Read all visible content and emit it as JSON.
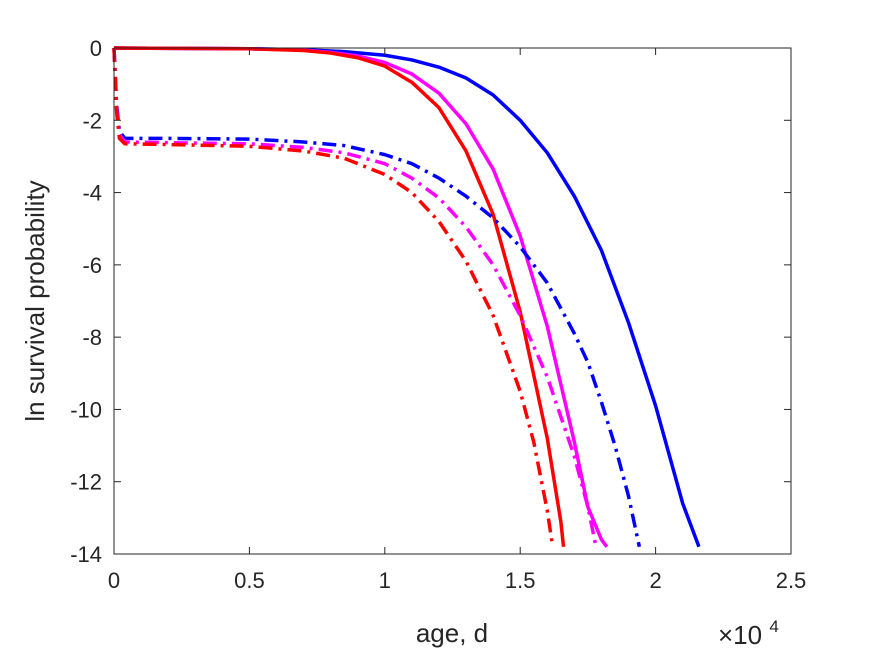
{
  "chart_data": {
    "type": "line",
    "title": "",
    "xlabel": "age, d",
    "ylabel": "ln survival probability",
    "x_multiplier_label": "×10",
    "x_multiplier_exponent": "4",
    "xlim": [
      0,
      25000
    ],
    "ylim": [
      -14,
      0
    ],
    "xticks": [
      0,
      5000,
      10000,
      15000,
      20000,
      25000
    ],
    "xtick_labels": [
      "0",
      "0.5",
      "1",
      "1.5",
      "2",
      "2.5"
    ],
    "yticks": [
      0,
      -2,
      -4,
      -6,
      -8,
      -10,
      -12,
      -14
    ],
    "ytick_labels": [
      "0",
      "-2",
      "-4",
      "-6",
      "-8",
      "-10",
      "-12",
      "-14"
    ],
    "grid": false,
    "legend": "none",
    "series": [
      {
        "color": "#0000ff",
        "style": "solid",
        "x": [
          0,
          5000,
          7000,
          8500,
          10000,
          11000,
          12000,
          13000,
          14000,
          15000,
          16000,
          17000,
          18000,
          19000,
          20000,
          21000,
          21600
        ],
        "y": [
          0,
          -0.02,
          -0.05,
          -0.1,
          -0.2,
          -0.33,
          -0.53,
          -0.83,
          -1.3,
          -2.0,
          -2.9,
          -4.1,
          -5.6,
          -7.6,
          -9.9,
          -12.6,
          -13.8
        ]
      },
      {
        "color": "#ff00ff",
        "style": "solid",
        "x": [
          0,
          5000,
          7000,
          8000,
          9000,
          10000,
          11000,
          12000,
          13000,
          14000,
          15000,
          16000,
          17000,
          17500,
          18000,
          18200
        ],
        "y": [
          0,
          -0.02,
          -0.06,
          -0.12,
          -0.22,
          -0.4,
          -0.72,
          -1.25,
          -2.1,
          -3.35,
          -5.2,
          -7.7,
          -10.9,
          -12.7,
          -13.6,
          -13.8
        ]
      },
      {
        "color": "#ff0000",
        "style": "solid",
        "x": [
          0,
          5000,
          7000,
          8000,
          9000,
          10000,
          11000,
          12000,
          13000,
          14000,
          15000,
          16000,
          16500,
          16600
        ],
        "y": [
          0,
          -0.02,
          -0.07,
          -0.14,
          -0.27,
          -0.5,
          -0.95,
          -1.65,
          -2.85,
          -4.6,
          -7.3,
          -10.8,
          -13.1,
          -13.8
        ]
      },
      {
        "color": "#0000ff",
        "style": "dashdot",
        "x": [
          0,
          100,
          200,
          400,
          2000,
          5000,
          7000,
          8500,
          10000,
          11000,
          12000,
          13000,
          14000,
          15000,
          16000,
          17000,
          17500,
          18000,
          18500,
          19000,
          19400
        ],
        "y": [
          0,
          -1.6,
          -2.3,
          -2.5,
          -2.5,
          -2.52,
          -2.6,
          -2.7,
          -2.95,
          -3.2,
          -3.6,
          -4.1,
          -4.7,
          -5.5,
          -6.5,
          -7.9,
          -8.7,
          -9.8,
          -11.0,
          -12.4,
          -13.8
        ]
      },
      {
        "color": "#ff00ff",
        "style": "dashdot",
        "x": [
          0,
          100,
          200,
          400,
          2000,
          5000,
          7000,
          8500,
          10000,
          11000,
          12000,
          13000,
          14000,
          15000,
          16000,
          17000,
          17500,
          17800
        ],
        "y": [
          0,
          -1.7,
          -2.4,
          -2.6,
          -2.62,
          -2.65,
          -2.75,
          -2.9,
          -3.2,
          -3.6,
          -4.15,
          -4.95,
          -6.0,
          -7.4,
          -9.1,
          -11.3,
          -12.7,
          -13.8
        ]
      },
      {
        "color": "#ff0000",
        "style": "dashdot",
        "x": [
          0,
          100,
          200,
          400,
          2000,
          5000,
          7000,
          8500,
          10000,
          11000,
          12000,
          13000,
          14000,
          15000,
          15500,
          16000,
          16200
        ],
        "y": [
          0,
          -1.8,
          -2.5,
          -2.65,
          -2.67,
          -2.72,
          -2.85,
          -3.05,
          -3.5,
          -4.0,
          -4.8,
          -5.9,
          -7.4,
          -9.5,
          -10.9,
          -12.8,
          -13.8
        ]
      }
    ]
  }
}
